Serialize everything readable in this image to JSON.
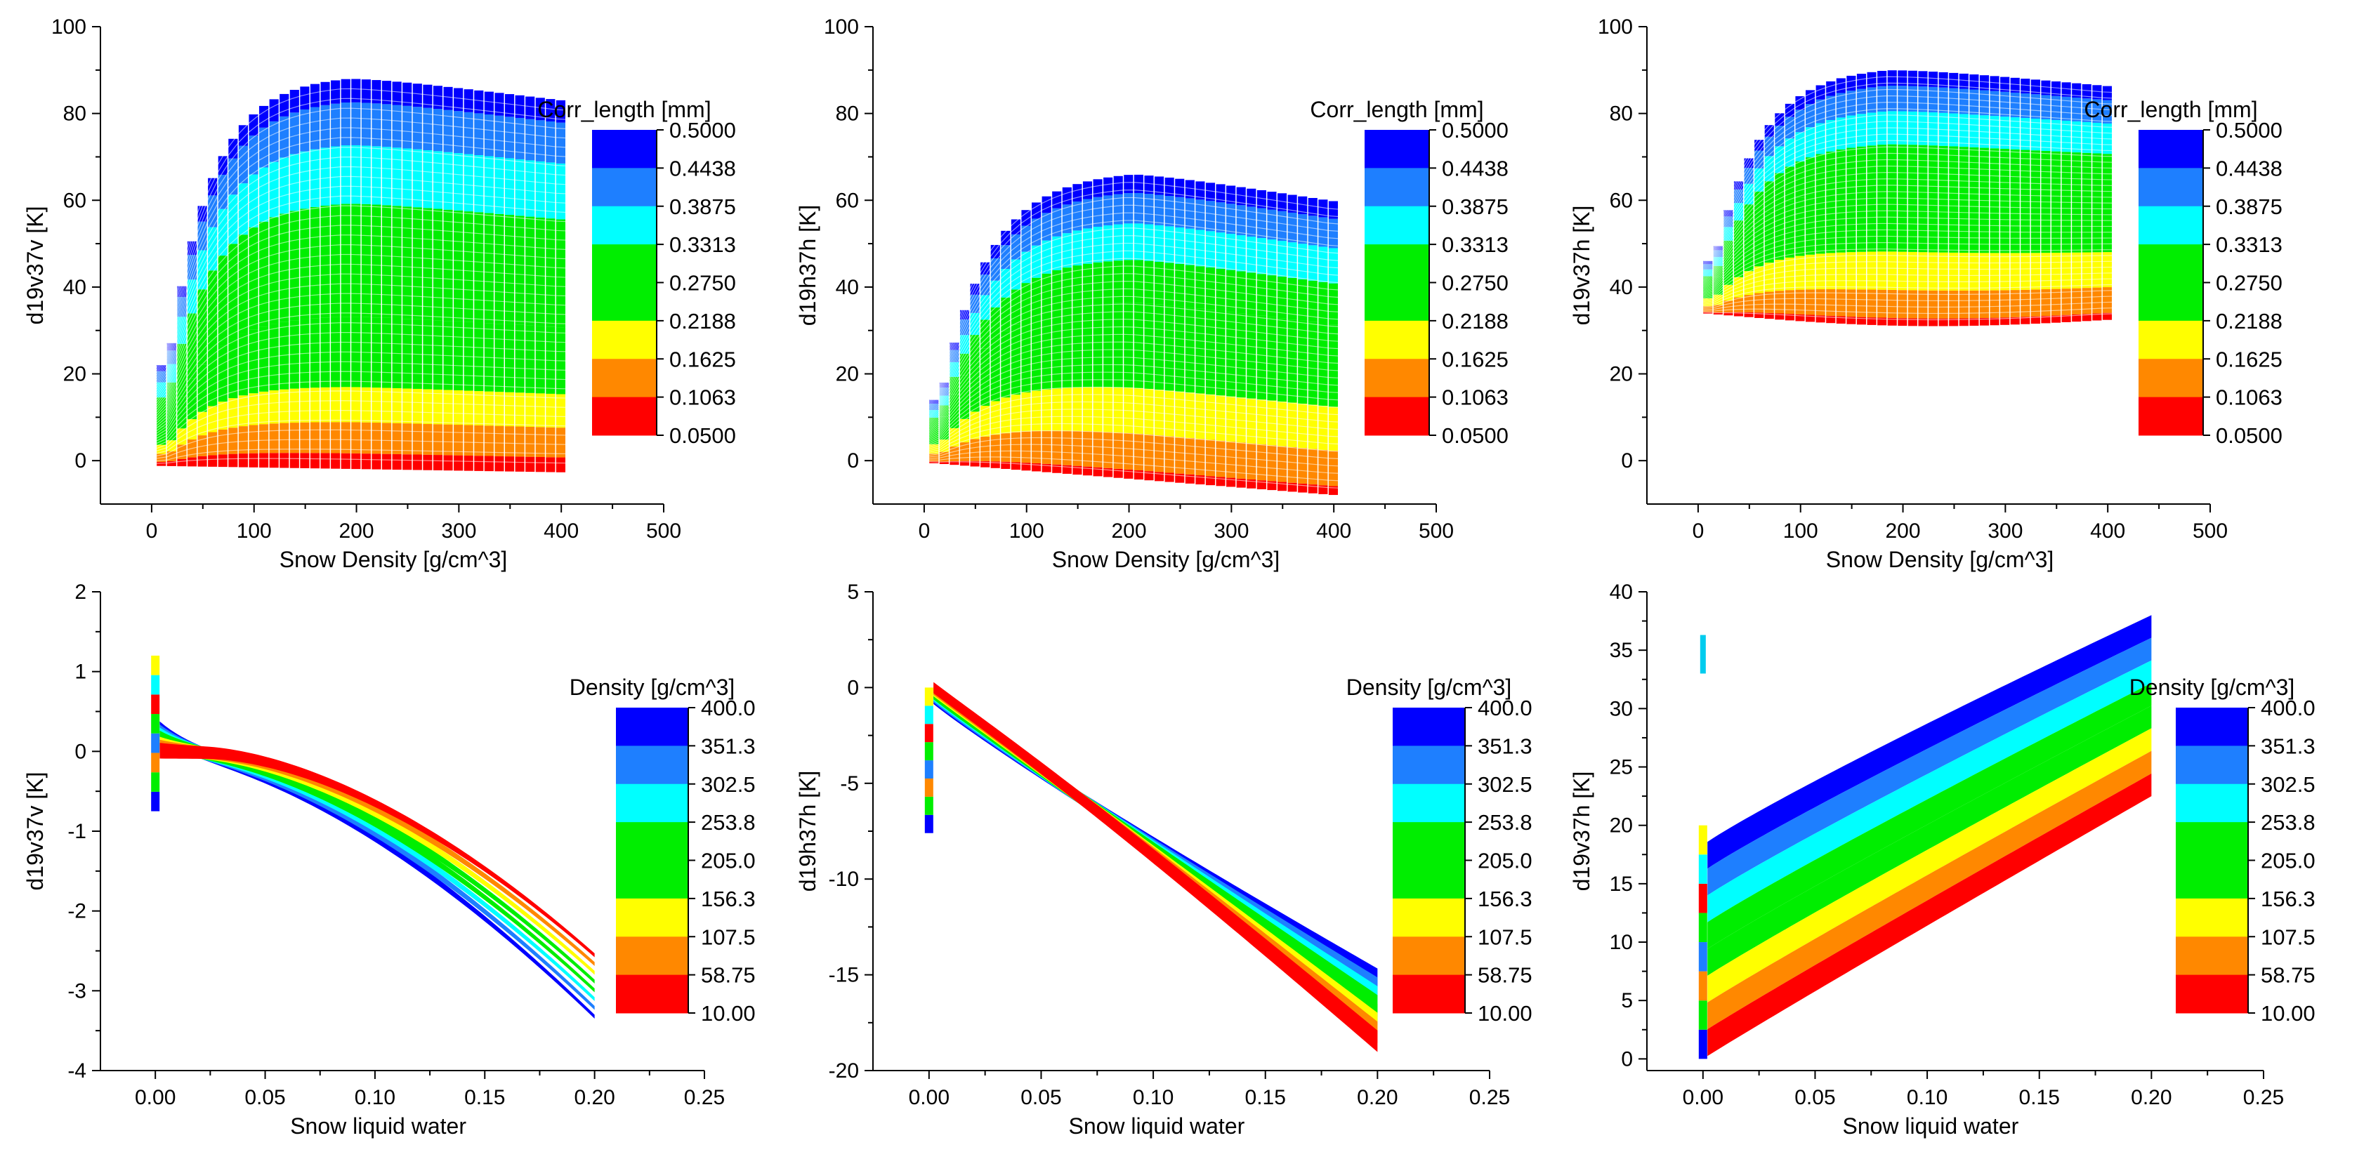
{
  "chart_data": [
    {
      "type": "heatmap",
      "title": "",
      "xlabel": "Snow Density [g/cm^3]",
      "ylabel": "d19v37v [K]",
      "xlim": [
        -50,
        500
      ],
      "ylim": [
        -10,
        100
      ],
      "xticks": [
        "0",
        "100",
        "200",
        "300",
        "400",
        "500"
      ],
      "yticks": [
        "0",
        "20",
        "40",
        "60",
        "80",
        "100"
      ],
      "colorbar_title": "Corr_length [mm]",
      "colorbar_ticks": [
        "0.5000",
        "0.4438",
        "0.3875",
        "0.3313",
        "0.2750",
        "0.2188",
        "0.1625",
        "0.1063",
        "0.0500"
      ],
      "x_range": [
        5,
        400
      ],
      "series_range_y": {
        "min": -2.5,
        "max": 88.5
      }
    },
    {
      "type": "heatmap",
      "title": "",
      "xlabel": "Snow Density [g/cm^3]",
      "ylabel": "d19h37h [K]",
      "xlim": [
        -50,
        500
      ],
      "ylim": [
        -10,
        100
      ],
      "xticks": [
        "0",
        "100",
        "200",
        "300",
        "400",
        "500"
      ],
      "yticks": [
        "0",
        "20",
        "40",
        "60",
        "80",
        "100"
      ],
      "colorbar_title": "Corr_length [mm]",
      "colorbar_ticks": [
        "0.5000",
        "0.4438",
        "0.3875",
        "0.3313",
        "0.2750",
        "0.2188",
        "0.1625",
        "0.1063",
        "0.0500"
      ],
      "x_range": [
        5,
        400
      ],
      "series_range_y": {
        "min": -8,
        "max": 66
      }
    },
    {
      "type": "heatmap",
      "title": "",
      "xlabel": "Snow Density [g/cm^3]",
      "ylabel": "d19v37h [K]",
      "xlim": [
        -50,
        500
      ],
      "ylim": [
        -10,
        100
      ],
      "xticks": [
        "0",
        "100",
        "200",
        "300",
        "400",
        "500"
      ],
      "yticks": [
        "0",
        "20",
        "40",
        "60",
        "80",
        "100"
      ],
      "colorbar_title": "Corr_length [mm]",
      "colorbar_ticks": [
        "0.5000",
        "0.4438",
        "0.3875",
        "0.3313",
        "0.2750",
        "0.2188",
        "0.1625",
        "0.1063",
        "0.0500"
      ],
      "x_range": [
        5,
        400
      ],
      "series_range_y": {
        "min": 32,
        "max": 90.5
      }
    },
    {
      "type": "heatmap",
      "title": "",
      "xlabel": "Snow liquid water",
      "ylabel": "d19v37v [K]",
      "xlim": [
        -0.025,
        0.25
      ],
      "ylim": [
        -4,
        2
      ],
      "xticks": [
        "0.00",
        "0.05",
        "0.10",
        "0.15",
        "0.20",
        "0.25"
      ],
      "yticks": [
        "-4",
        "-3",
        "-2",
        "-1",
        "0",
        "1",
        "2"
      ],
      "colorbar_title": "Density [g/cm^3]",
      "colorbar_ticks": [
        "400.0",
        "351.3",
        "302.5",
        "253.8",
        "205.0",
        "156.3",
        "107.5",
        "58.75",
        "10.00"
      ],
      "x_range": [
        0,
        0.2
      ],
      "end_values_at_x_0.2": {
        "density_400": -3.35,
        "density_10": -2.3
      }
    },
    {
      "type": "heatmap",
      "title": "",
      "xlabel": "Snow liquid water",
      "ylabel": "d19h37h [K]",
      "xlim": [
        -0.025,
        0.25
      ],
      "ylim": [
        -20,
        5
      ],
      "xticks": [
        "0.00",
        "0.05",
        "0.10",
        "0.15",
        "0.20",
        "0.25"
      ],
      "yticks": [
        "-20",
        "-15",
        "-10",
        "-5",
        "0",
        "5"
      ],
      "colorbar_title": "Density [g/cm^3]",
      "colorbar_ticks": [
        "400.0",
        "351.3",
        "302.5",
        "253.8",
        "205.0",
        "156.3",
        "107.5",
        "58.75",
        "10.00"
      ],
      "x_range": [
        0,
        0.2
      ],
      "end_values_at_x_0.2": {
        "density_400": -14.5,
        "density_10": -18.7
      }
    },
    {
      "type": "heatmap",
      "title": "",
      "xlabel": "Snow liquid water",
      "ylabel": "d19v37h [K]",
      "xlim": [
        -0.025,
        0.25
      ],
      "ylim": [
        -1,
        40
      ],
      "xticks": [
        "0.00",
        "0.05",
        "0.10",
        "0.15",
        "0.20",
        "0.25"
      ],
      "yticks": [
        "0",
        "5",
        "10",
        "15",
        "20",
        "25",
        "30",
        "35",
        "40"
      ],
      "colorbar_title": "Density [g/cm^3]",
      "colorbar_ticks": [
        "400.0",
        "351.3",
        "302.5",
        "253.8",
        "205.0",
        "156.3",
        "107.5",
        "58.75",
        "10.00"
      ],
      "x_range": [
        0,
        0.2
      ],
      "end_values_at_x_0.2": {
        "density_400": 38,
        "density_10": 22.5
      }
    }
  ],
  "palette": [
    "#0000ff",
    "#1e7fff",
    "#00ffff",
    "#00ee00",
    "#00ee00",
    "#ffff00",
    "#ff8800",
    "#ff0000"
  ]
}
